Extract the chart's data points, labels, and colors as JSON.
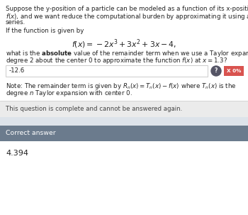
{
  "outer_bg": "#dde3ea",
  "white_bg": "#ffffff",
  "complete_bg": "#ebebeb",
  "correct_header_bg": "#6b7b8d",
  "correct_header_fg": "#ffffff",
  "answer_input_border": "#cccccc",
  "badge_bg": "#d9534f",
  "badge_fg": "#ffffff",
  "text_dark": "#222222",
  "text_mid": "#444444",
  "answer_input": "-12.6",
  "badge_text": "X 0%",
  "complete_text": "This question is complete and cannot be answered again.",
  "correct_header_text": "Correct answer",
  "correct_answer": "4.394",
  "fs": 6.2,
  "fs_formula": 7.8,
  "fs_answer": 8.0,
  "fs_badge": 5.2
}
